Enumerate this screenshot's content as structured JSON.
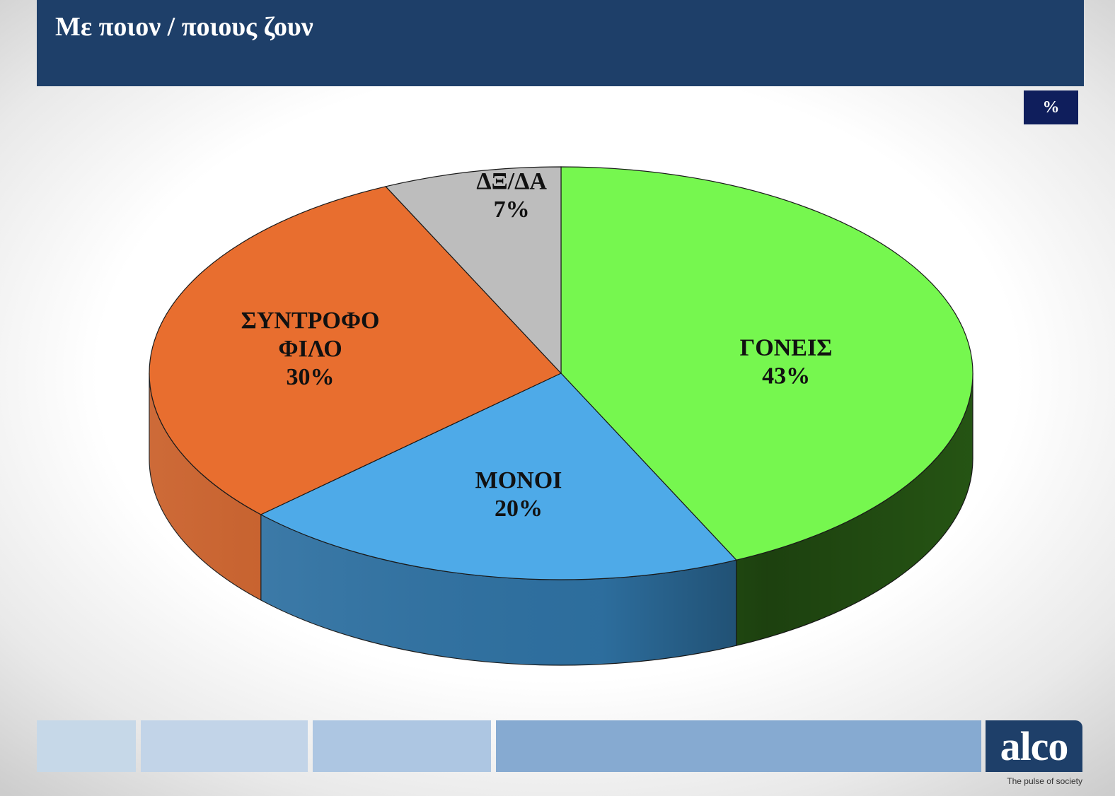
{
  "header": {
    "title": "Με ποιον / ποιους ζουν"
  },
  "unit_badge": "%",
  "logo": {
    "text": "alco",
    "tagline": "The pulse of society"
  },
  "chart_data": {
    "type": "pie",
    "title": "Με ποιον / ποιους ζουν",
    "unit": "%",
    "slices": [
      {
        "label": "ΓΟΝΕΙΣ",
        "value": 43,
        "value_label": "43%",
        "color": "#76f74f",
        "side_color": "#2c6317"
      },
      {
        "label": "ΜΟΝΟΙ",
        "value": 20,
        "value_label": "20%",
        "color": "#4eaae8",
        "side_color": "#2f73a5"
      },
      {
        "label": "ΣΥΝΤΡΟΦΟ ΦΙΛΟ",
        "value": 30,
        "value_label": "30%",
        "color": "#e86e2f",
        "side_color": "#c85a22"
      },
      {
        "label": "ΔΞ/ΔΑ",
        "value": 7,
        "value_label": "7%",
        "color": "#bdbdbd",
        "side_color": "#8f8f8f"
      }
    ],
    "legend": "none"
  }
}
